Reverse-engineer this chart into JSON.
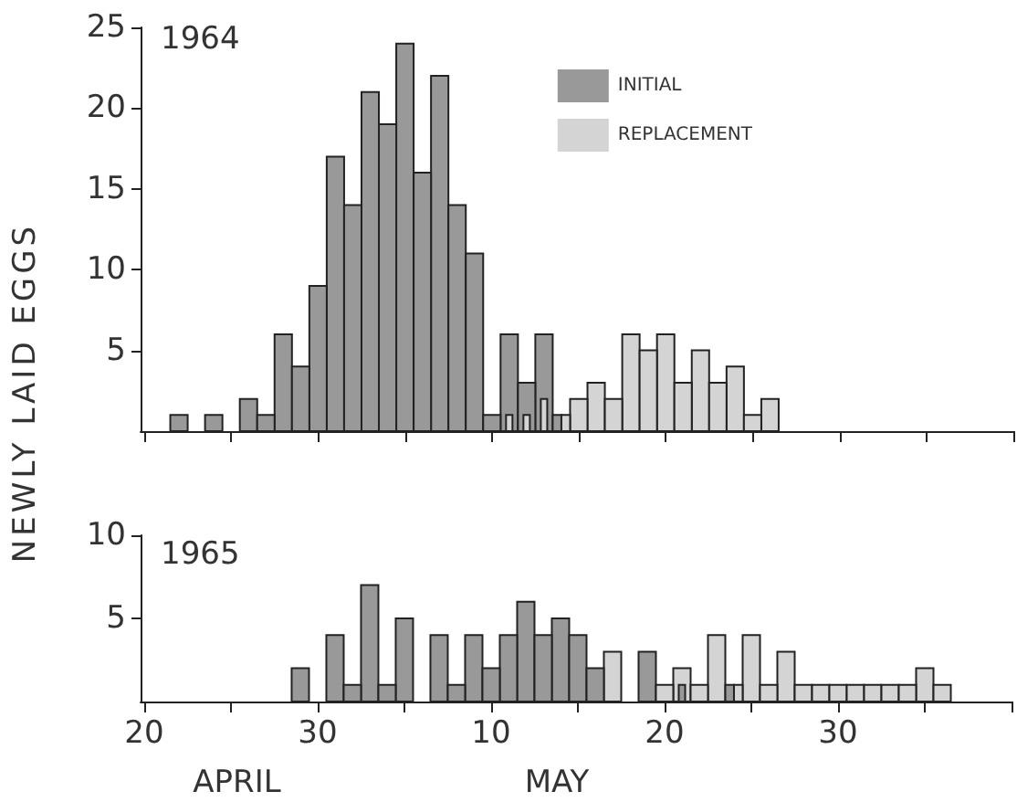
{
  "chart_data": [
    {
      "type": "histogram",
      "title": "1964",
      "ylabel": "NEWLY LAID EGGS",
      "bins": [
        "--04-21T12:00",
        "--04-22T12:00",
        "--04-23T12:00",
        "--04-24T12:00",
        "--04-25T12:00",
        "--04-26T12:00",
        "--04-27T12:00",
        "--04-28T12:00",
        "--04-29T12:00",
        "--04-30T12:00",
        "--05-01T12:00",
        "--05-02T12:00",
        "--05-03T12:00",
        "--05-04T12:00",
        "--05-05T12:00",
        "--05-06T12:00",
        "--05-07T12:00",
        "--05-08T12:00",
        "--05-09T12:00",
        "--05-10T12:00",
        "--05-11T12:00",
        "--05-12T12:00",
        "--05-13T12:00",
        "--05-14T12:00",
        "--05-15T12:00",
        "--05-16T12:00",
        "--05-17T12:00",
        "--05-18T12:00",
        "--05-19T12:00",
        "--05-20T12:00",
        "--05-21T12:00",
        "--05-22T12:00",
        "--05-23T12:00",
        "--05-24T12:00",
        "--05-25T12:00",
        "--05-26T12:00",
        "--05-27T12:00",
        "--05-28T12:00",
        "--05-29T12:00",
        "--05-30T12:00",
        "--05-31T12:00",
        "--06-01T12:00",
        "--06-02T12:00",
        "--06-03T12:00",
        "--06-04T12:00",
        "--06-05T12:00"
      ],
      "series": [
        {
          "name": "INITIAL",
          "color": "#999999",
          "values": [
            1,
            0,
            1,
            0,
            2,
            1,
            6,
            4,
            9,
            17,
            14,
            21,
            19,
            24,
            16,
            22,
            14,
            11,
            1,
            6,
            3,
            6,
            1,
            0,
            0,
            0,
            0,
            0,
            0,
            0,
            0,
            0,
            0,
            0,
            0,
            0,
            0,
            0,
            0,
            0,
            0,
            0,
            0,
            0,
            0
          ]
        },
        {
          "name": "REPLACEMENT",
          "color": "#d4d4d4",
          "values": [
            0,
            0,
            0,
            0,
            0,
            0,
            0,
            0,
            0,
            0,
            0,
            0,
            0,
            0,
            0,
            0,
            0,
            0,
            0,
            1,
            1,
            2,
            1,
            2,
            3,
            2,
            6,
            5,
            6,
            3,
            5,
            3,
            4,
            1,
            2,
            0,
            0,
            0,
            0,
            0,
            0,
            0,
            0,
            0,
            0
          ]
        }
      ],
      "xlim": [
        "--04-19T19:00",
        "--06-09"
      ],
      "xticks": [
        {
          "value": "--04-20",
          "label": null
        },
        {
          "value": "--04-25",
          "label": null
        },
        {
          "value": "--04-30",
          "label": null
        },
        {
          "value": "--05-05",
          "label": null
        },
        {
          "value": "--05-10",
          "label": null
        },
        {
          "value": "--05-15",
          "label": null
        },
        {
          "value": "--05-20",
          "label": null
        },
        {
          "value": "--05-25",
          "label": null
        },
        {
          "value": "--05-30",
          "label": null
        },
        {
          "value": "--06-04",
          "label": null
        },
        {
          "value": "--06-09",
          "label": null
        }
      ],
      "ylim": [
        0,
        25
      ],
      "yticks": [
        5,
        10,
        15,
        20,
        25
      ],
      "tick_labels": "y",
      "legend": "top right"
    },
    {
      "type": "histogram",
      "title": "1965",
      "annotations": [
        "APRIL",
        "MAY"
      ],
      "bins": [
        "--04-21T12:00",
        "--04-22T12:00",
        "--04-23T12:00",
        "--04-24T12:00",
        "--04-25T12:00",
        "--04-26T12:00",
        "--04-27T12:00",
        "--04-28T12:00",
        "--04-29T12:00",
        "--04-30T12:00",
        "--05-01T12:00",
        "--05-02T12:00",
        "--05-03T12:00",
        "--05-04T12:00",
        "--05-05T12:00",
        "--05-06T12:00",
        "--05-07T12:00",
        "--05-08T12:00",
        "--05-09T12:00",
        "--05-10T12:00",
        "--05-11T12:00",
        "--05-12T12:00",
        "--05-13T12:00",
        "--05-14T12:00",
        "--05-15T12:00",
        "--05-16T12:00",
        "--05-17T12:00",
        "--05-18T12:00",
        "--05-19T12:00",
        "--05-20T12:00",
        "--05-21T12:00",
        "--05-22T12:00",
        "--05-23T12:00",
        "--05-24T12:00",
        "--05-25T12:00",
        "--05-26T12:00",
        "--05-27T12:00",
        "--05-28T12:00",
        "--05-29T12:00",
        "--05-30T12:00",
        "--05-31T12:00",
        "--06-01T12:00",
        "--06-02T12:00",
        "--06-03T12:00",
        "--06-04T12:00",
        "--06-05T12:00"
      ],
      "series": [
        {
          "color": "#999999",
          "values": [
            0,
            0,
            0,
            0,
            0,
            0,
            0,
            2,
            0,
            4,
            1,
            7,
            1,
            5,
            0,
            4,
            1,
            4,
            2,
            4,
            6,
            4,
            5,
            4,
            2,
            0,
            0,
            3,
            0,
            1,
            0,
            0,
            1,
            0,
            0,
            0,
            0,
            0,
            0,
            0,
            0,
            0,
            0,
            0,
            0
          ]
        },
        {
          "color": "#d4d4d4",
          "values": [
            0,
            0,
            0,
            0,
            0,
            0,
            0,
            0,
            0,
            0,
            0,
            0,
            0,
            0,
            0,
            0,
            0,
            0,
            0,
            0,
            0,
            0,
            0,
            0,
            0,
            3,
            0,
            0,
            1,
            2,
            1,
            4,
            1,
            4,
            1,
            3,
            1,
            1,
            1,
            1,
            1,
            1,
            1,
            2,
            1
          ]
        }
      ],
      "xlim": [
        "--04-19T19:00",
        "--06-09"
      ],
      "xticks": [
        {
          "value": "--04-20",
          "label": "20"
        },
        {
          "value": "--04-25",
          "label": null
        },
        {
          "value": "--04-30",
          "label": "30"
        },
        {
          "value": "--05-05",
          "label": null
        },
        {
          "value": "--05-10",
          "label": "10"
        },
        {
          "value": "--05-15",
          "label": null
        },
        {
          "value": "--05-20",
          "label": "20"
        },
        {
          "value": "--05-25",
          "label": null
        },
        {
          "value": "--05-30",
          "label": "30"
        },
        {
          "value": "--06-04",
          "label": null
        },
        {
          "value": "--06-09",
          "label": null
        }
      ],
      "ylim": [
        0,
        10
      ],
      "yticks": [
        5,
        10
      ]
    }
  ]
}
